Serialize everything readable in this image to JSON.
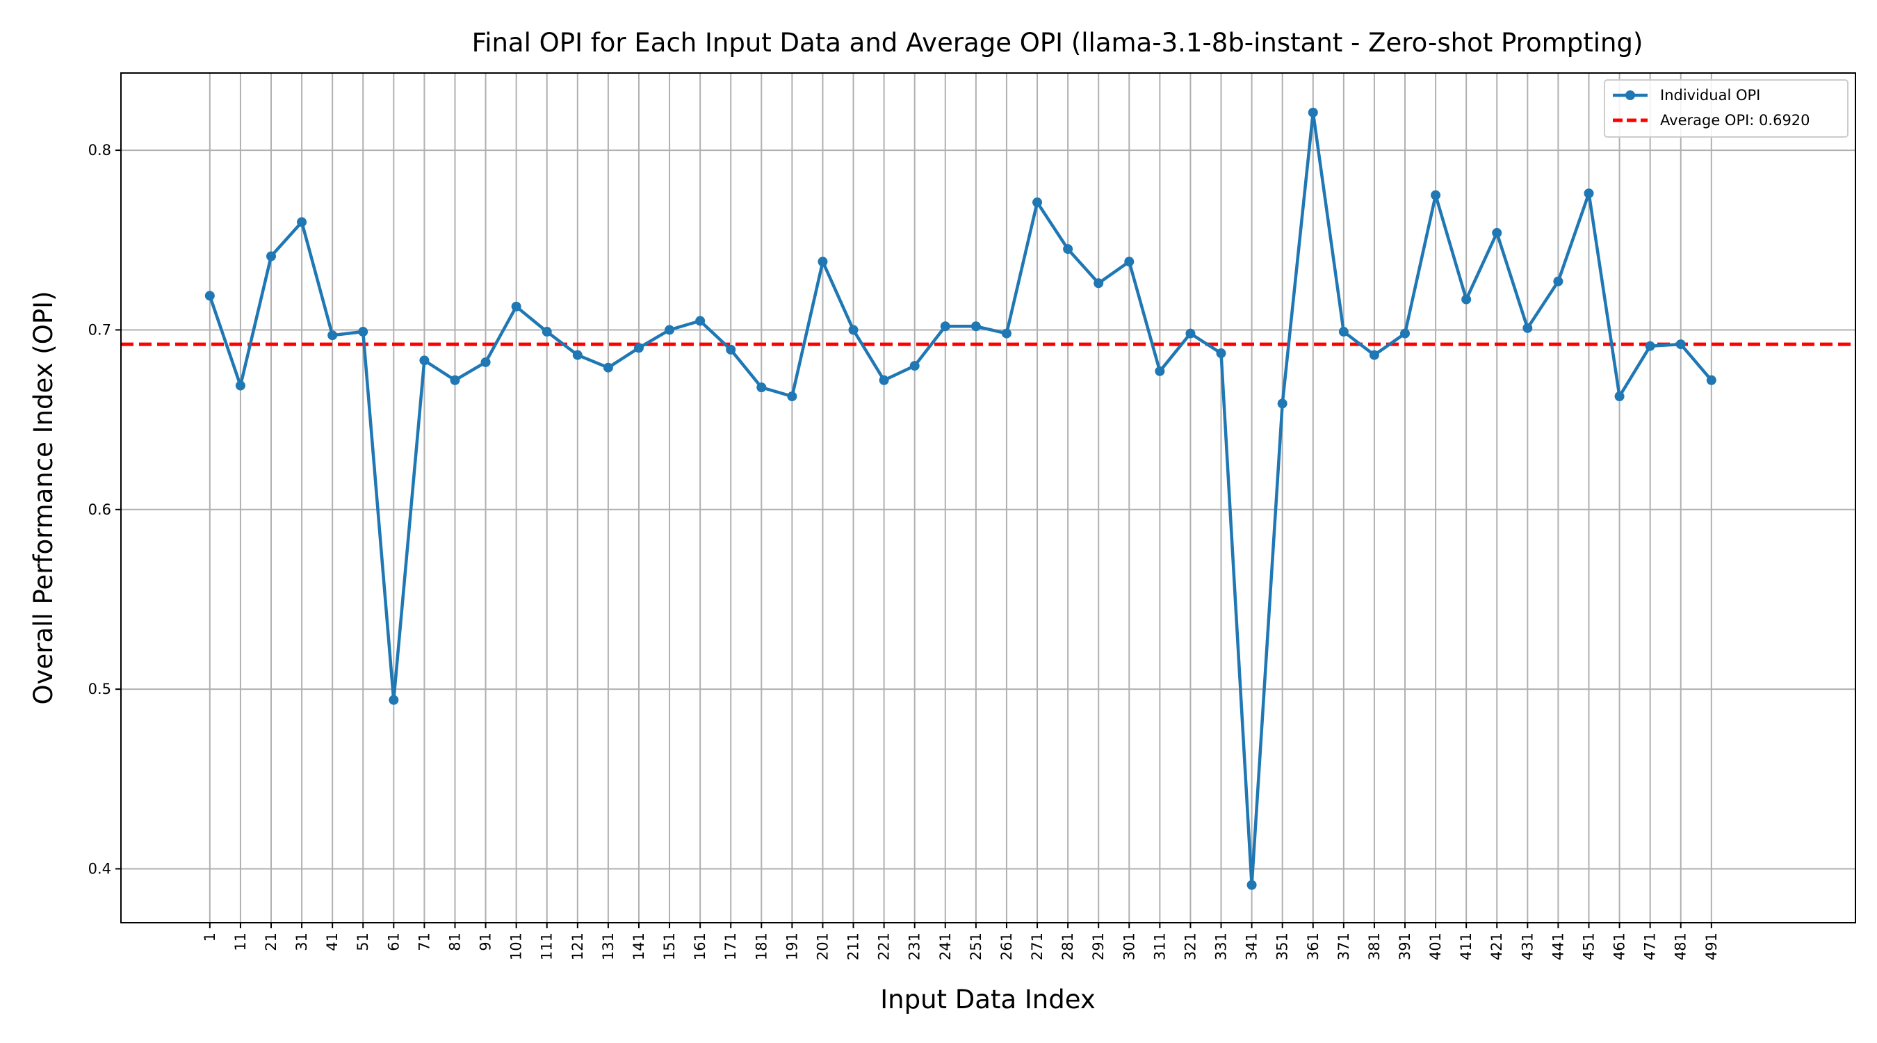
{
  "chart_data": {
    "type": "line",
    "title": "Final OPI for Each Input Data and Average OPI (llama-3.1-8b-instant - Zero-shot Prompting)",
    "xlabel": "Input Data Index",
    "ylabel": "Overall Performance Index (OPI)",
    "x": [
      1,
      11,
      21,
      31,
      41,
      51,
      61,
      71,
      81,
      91,
      101,
      111,
      121,
      131,
      141,
      151,
      161,
      171,
      181,
      191,
      201,
      211,
      221,
      231,
      241,
      251,
      261,
      271,
      281,
      291,
      301,
      311,
      321,
      331,
      341,
      351,
      361,
      371,
      381,
      391,
      401,
      411,
      421,
      431,
      441,
      451,
      461,
      471,
      481,
      491
    ],
    "xticks": [
      "1",
      "11",
      "21",
      "31",
      "41",
      "51",
      "61",
      "71",
      "81",
      "91",
      "101",
      "111",
      "121",
      "131",
      "141",
      "151",
      "161",
      "171",
      "181",
      "191",
      "201",
      "211",
      "221",
      "231",
      "241",
      "251",
      "261",
      "271",
      "281",
      "291",
      "301",
      "311",
      "321",
      "331",
      "341",
      "351",
      "361",
      "371",
      "381",
      "391",
      "401",
      "411",
      "421",
      "431",
      "441",
      "451",
      "461",
      "471",
      "481",
      "491"
    ],
    "yticks": [
      "0.4",
      "0.5",
      "0.6",
      "0.7",
      "0.8"
    ],
    "ylim": [
      0.37,
      0.843
    ],
    "xlim": [
      -28,
      538
    ],
    "grid": true,
    "legend_position": "top-right",
    "series": [
      {
        "name": "Individual OPI",
        "style": "solid-line-with-markers",
        "color": "#1f77b4",
        "values": [
          0.719,
          0.669,
          0.741,
          0.76,
          0.697,
          0.699,
          0.494,
          0.683,
          0.672,
          0.682,
          0.713,
          0.699,
          0.686,
          0.679,
          0.69,
          0.7,
          0.705,
          0.689,
          0.668,
          0.663,
          0.738,
          0.7,
          0.672,
          0.68,
          0.702,
          0.702,
          0.698,
          0.771,
          0.745,
          0.726,
          0.738,
          0.677,
          0.698,
          0.687,
          0.391,
          0.659,
          0.821,
          0.699,
          0.686,
          0.698,
          0.775,
          0.717,
          0.754,
          0.701,
          0.727,
          0.776,
          0.663,
          0.691,
          0.692,
          0.672
        ]
      }
    ],
    "reference_line": {
      "name": "Average OPI: 0.6920",
      "value": 0.692,
      "style": "dashed",
      "color": "#ff0000"
    }
  }
}
